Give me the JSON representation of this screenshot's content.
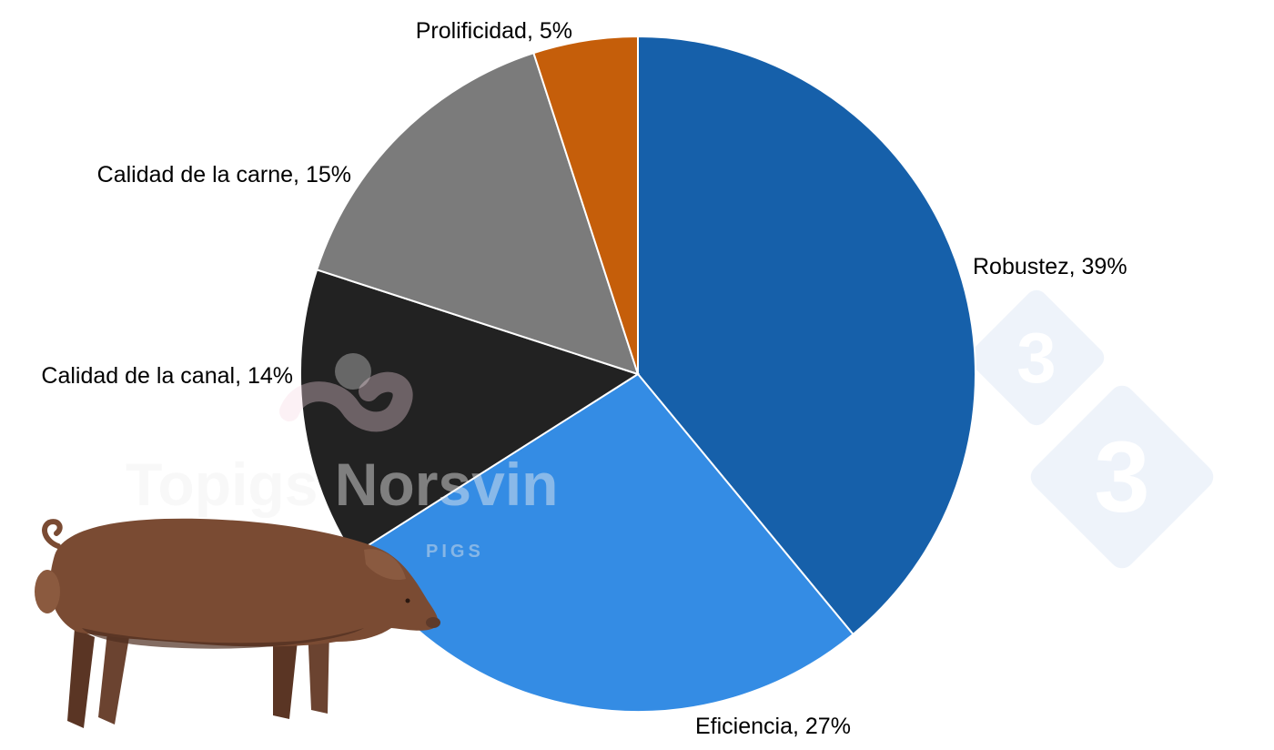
{
  "chart_data": {
    "type": "pie",
    "title": "",
    "start_angle_deg": 0,
    "direction": "clockwise",
    "slices": [
      {
        "label": "Robustez, 39%",
        "value": 39,
        "color": "#1660AA"
      },
      {
        "label": "Eficiencia, 27%",
        "value": 27,
        "color": "#348CE4"
      },
      {
        "label": "Calidad de la canal, 14%",
        "value": 14,
        "color": "#222222"
      },
      {
        "label": "Calidad de la carne, 15%",
        "value": 15,
        "color": "#7B7B7B"
      },
      {
        "label": "Prolificidad, 5%",
        "value": 5,
        "color": "#C55E0A"
      }
    ],
    "slice_border_color": "#FFFFFF"
  },
  "watermark": {
    "brand_text": "Topigs Norsvin",
    "sub_text": "PIGS",
    "site_mark": "3",
    "brand_color": "#F0F0F0",
    "site_mark_color": "#EEF3FA"
  },
  "illustration": {
    "icon": "pig-illustration"
  }
}
